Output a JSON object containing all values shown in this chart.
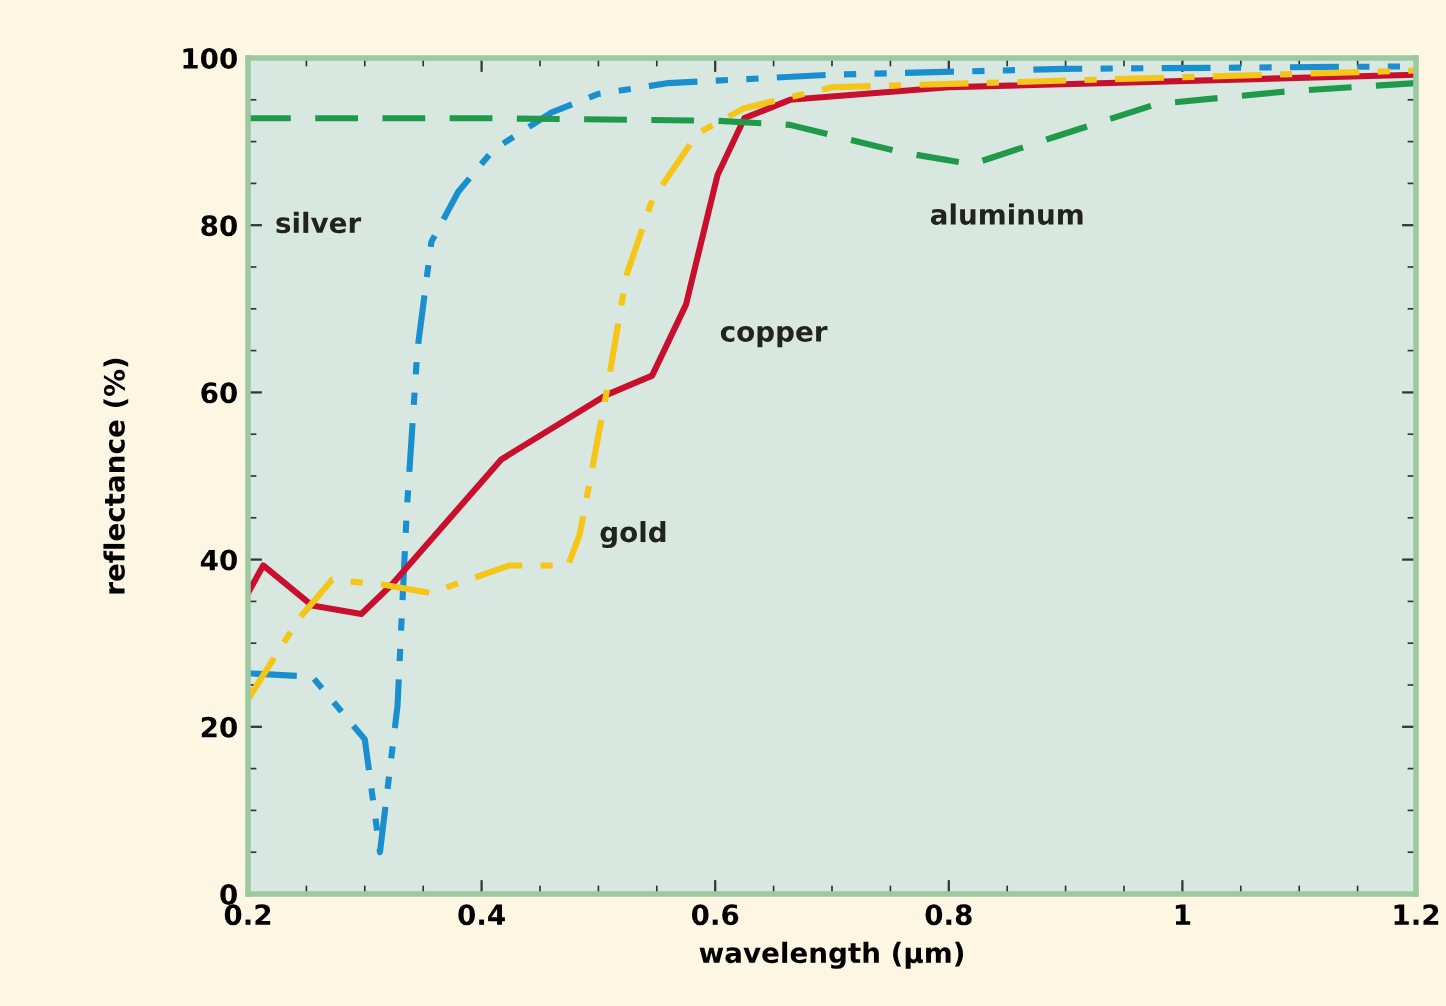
{
  "chart_data": {
    "type": "line",
    "xlabel": "wavelength (µm)",
    "ylabel": "reflectance (%)",
    "xlim": [
      0.2,
      1.2
    ],
    "ylim": [
      0,
      100
    ],
    "xticks": [
      0.2,
      0.4,
      0.6,
      0.8,
      1,
      1.2
    ],
    "yticks": [
      0,
      20,
      40,
      60,
      80,
      100
    ],
    "grid": false,
    "legend": false,
    "marker": "none",
    "series": [
      {
        "name": "silver",
        "color": "#1a8fd0",
        "line_style": "dashdotdot",
        "x": [
          0.2,
          0.255,
          0.3,
          0.313,
          0.328,
          0.336,
          0.345,
          0.357,
          0.38,
          0.41,
          0.46,
          0.5,
          0.56,
          0.7,
          0.9,
          1.2
        ],
        "values": [
          26.4,
          26,
          18.5,
          5,
          22.5,
          46,
          65,
          78,
          84,
          89,
          93.5,
          95.7,
          97,
          98,
          98.7,
          99
        ]
      },
      {
        "name": "copper",
        "color": "#c8102e",
        "line_style": "solid",
        "x": [
          0.2,
          0.213,
          0.255,
          0.297,
          0.323,
          0.417,
          0.507,
          0.546,
          0.575,
          0.602,
          0.625,
          0.664,
          0.8,
          1.2
        ],
        "values": [
          36,
          39.3,
          34.5,
          33.5,
          37,
          52,
          59.7,
          62,
          70.5,
          86,
          92.8,
          95,
          96.5,
          98
        ]
      },
      {
        "name": "gold",
        "color": "#f5c518",
        "line_style": "dashdot",
        "x": [
          0.2,
          0.244,
          0.272,
          0.316,
          0.356,
          0.424,
          0.474,
          0.484,
          0.507,
          0.524,
          0.546,
          0.585,
          0.625,
          0.7,
          1.2
        ],
        "values": [
          23.3,
          33,
          37.6,
          37,
          36,
          39.3,
          39.3,
          43,
          60,
          74,
          83,
          91,
          94,
          96.5,
          98.5
        ]
      },
      {
        "name": "aluminum",
        "color": "#1f9a4a",
        "line_style": "dashed",
        "x": [
          0.2,
          0.4,
          0.6,
          0.664,
          0.76,
          0.82,
          0.887,
          0.978,
          1.089,
          1.2
        ],
        "values": [
          92.8,
          92.8,
          92.5,
          92,
          88.7,
          87.3,
          90.4,
          94.5,
          96,
          97
        ]
      }
    ]
  }
}
